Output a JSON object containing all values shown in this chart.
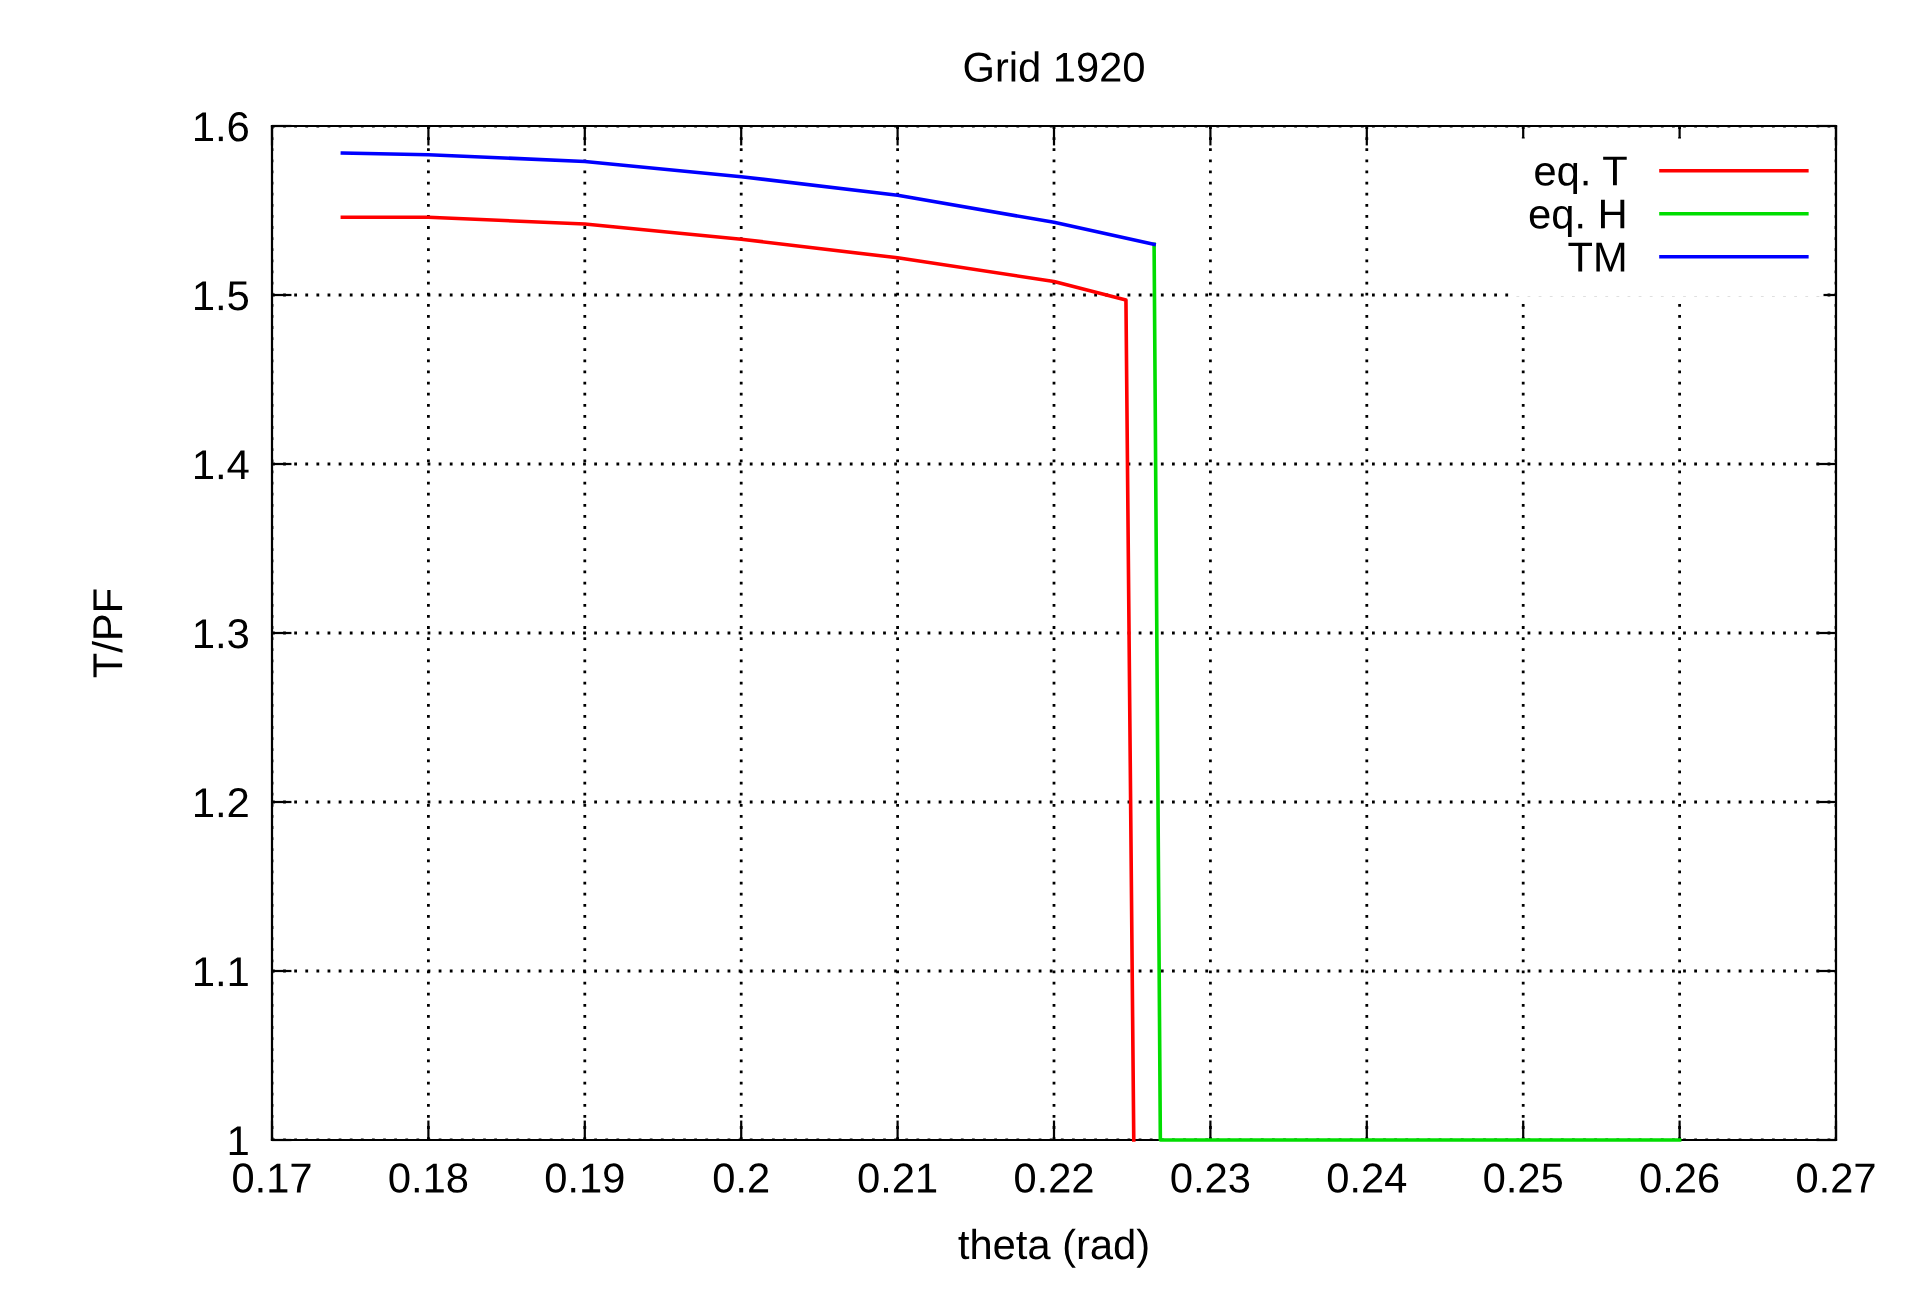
{
  "chart_data": {
    "type": "line",
    "title": "Grid 1920",
    "xlabel": "theta (rad)",
    "ylabel": "T/PF",
    "xlim": [
      0.17,
      0.27
    ],
    "xticks": [
      0.17,
      0.18,
      0.19,
      0.2,
      0.21,
      0.22,
      0.23,
      0.24,
      0.25,
      0.26,
      0.27
    ],
    "ylim": [
      1,
      1.6
    ],
    "yticks": [
      1,
      1.1,
      1.2,
      1.3,
      1.4,
      1.5,
      1.6
    ],
    "grid": true,
    "legend": "top right",
    "series": [
      {
        "name": "eq. T",
        "color": "#ff0000",
        "x": [
          0.1745,
          0.18,
          0.19,
          0.2,
          0.21,
          0.22,
          0.2246,
          0.2251
        ],
        "values": [
          1.546,
          1.546,
          1.542,
          1.533,
          1.522,
          1.508,
          1.497,
          1.0
        ]
      },
      {
        "name": "eq. H",
        "color": "#00dd00",
        "x": [
          0.2264,
          0.2268,
          0.26
        ],
        "values": [
          1.53,
          1.0,
          1.0
        ]
      },
      {
        "name": "TM",
        "color": "#0000ff",
        "x": [
          0.1745,
          0.18,
          0.19,
          0.2,
          0.21,
          0.22,
          0.2264
        ],
        "values": [
          1.584,
          1.583,
          1.579,
          1.57,
          1.559,
          1.543,
          1.53
        ]
      }
    ]
  }
}
